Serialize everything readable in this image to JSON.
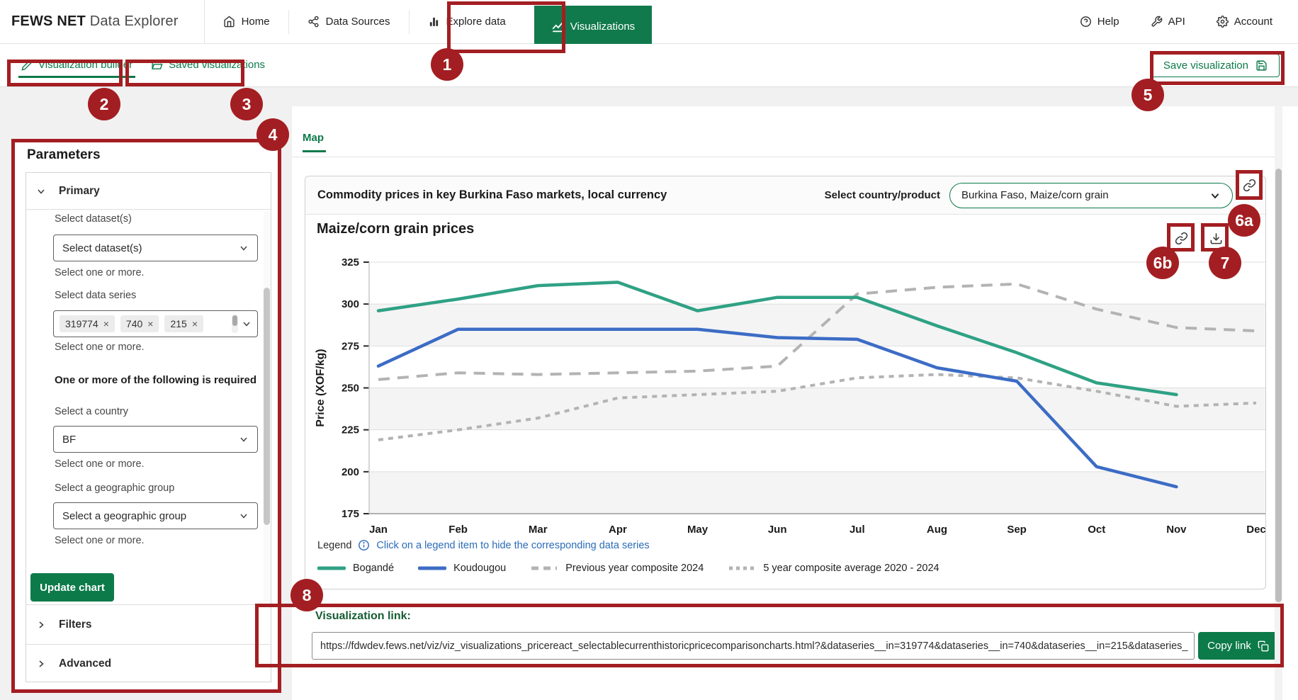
{
  "colors": {
    "accent_green": "#0d7a4a",
    "annotation_red": "#a31e22",
    "link_blue": "#2b6cb8",
    "heading_dark_green": "#155d33"
  },
  "top_nav": {
    "brand_bold": "FEWS NET",
    "brand_rest": "Data Explorer",
    "items": [
      {
        "label": "Home"
      },
      {
        "label": "Data Sources"
      },
      {
        "label": "Explore data"
      },
      {
        "label": "Visualizations",
        "active": true
      }
    ],
    "right_items": [
      {
        "label": "Help"
      },
      {
        "label": "API"
      },
      {
        "label": "Account"
      }
    ]
  },
  "toolbar": {
    "tabs": [
      {
        "label": "Visualization builder",
        "active": true
      },
      {
        "label": "Saved visualizations"
      }
    ],
    "save_label": "Save visualization"
  },
  "parameters": {
    "title": "Parameters",
    "sections": {
      "primary": "Primary",
      "filters": "Filters",
      "advanced": "Advanced"
    },
    "primary": {
      "dataset_label": "Select dataset(s)",
      "dataset_value": "Select dataset(s)",
      "dataset_help": "Select one or more.",
      "series_label": "Select data series",
      "series_chips": [
        "319774",
        "740",
        "215"
      ],
      "series_help": "Select one or more.",
      "required_note": "One or more of the following is required",
      "country_label": "Select a country",
      "country_value": "BF",
      "country_help": "Select one or more.",
      "geo_label": "Select a geographic group",
      "geo_value": "Select a geographic group",
      "geo_help": "Select one or more.",
      "update_button": "Update chart"
    }
  },
  "main": {
    "tab": "Map",
    "card_title": "Commodity prices in key Burkina Faso markets, local currency",
    "country_product_label": "Select country/product",
    "country_product_value": "Burkina Faso, Maize/corn grain"
  },
  "chart_data": {
    "type": "line",
    "title": "Maize/corn grain prices",
    "xlabel": "",
    "ylabel": "Price (XOF/kg)",
    "ylim": [
      175,
      325
    ],
    "ytick_step": 25,
    "grid": true,
    "legend_position": "bottom",
    "categories": [
      "Jan",
      "Feb",
      "Mar",
      "Apr",
      "May",
      "Jun",
      "Jul",
      "Aug",
      "Sep",
      "Oct",
      "Nov",
      "Dec"
    ],
    "series": [
      {
        "name": "Bogandé",
        "color": "#2fa184",
        "style": "solid",
        "values": [
          296,
          303,
          311,
          313,
          296,
          304,
          304,
          287,
          271,
          253,
          246,
          null
        ]
      },
      {
        "name": "Koudougou",
        "color": "#3c6cc5",
        "style": "solid",
        "values": [
          263,
          285,
          285,
          285,
          285,
          280,
          279,
          262,
          254,
          203,
          191,
          null
        ]
      },
      {
        "name": "Previous year composite 2024",
        "color": "#b3b3b3",
        "style": "dashed-long",
        "values": [
          255,
          259,
          258,
          259,
          260,
          263,
          306,
          310,
          312,
          297,
          286,
          284
        ]
      },
      {
        "name": "5 year composite average 2020 - 2024",
        "color": "#b3b3b3",
        "style": "dashed-short",
        "values": [
          219,
          225,
          232,
          244,
          246,
          248,
          256,
          258,
          256,
          248,
          239,
          241
        ]
      }
    ]
  },
  "legend": {
    "label": "Legend",
    "hint": "Click on a legend item to hide the corresponding data series"
  },
  "viz_link": {
    "label": "Visualization link:",
    "url": "https://fdwdev.fews.net/viz/viz_visualizations_pricereact_selectablecurrenthistoricpricecomparisoncharts.html?&dataseries__in=319774&dataseries__in=740&dataseries__in=215&dataseries_",
    "copy_button": "Copy link"
  },
  "annotations": {
    "badges": [
      {
        "label": "1"
      },
      {
        "label": "2"
      },
      {
        "label": "3"
      },
      {
        "label": "4"
      },
      {
        "label": "5"
      },
      {
        "label": "6a"
      },
      {
        "label": "6b"
      },
      {
        "label": "7"
      },
      {
        "label": "8"
      }
    ]
  }
}
